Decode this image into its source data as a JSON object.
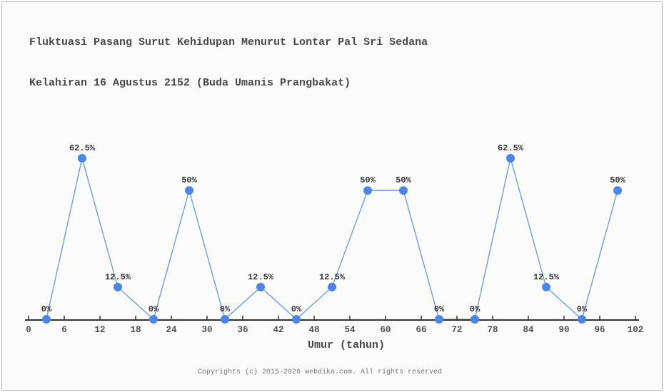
{
  "page": {
    "title_line1": "Fluktuasi Pasang Surut Kehidupan Menurut Lontar Pal Sri Sedana",
    "title_line2": "Kelahiran 16 Agustus 2152 (Buda Umanis Prangbakat)",
    "footer": "Copyrights (c) 2015-2026 webdika.com. All rights reserved"
  },
  "chart_data": {
    "type": "line",
    "title": "Fluktuasi Pasang Surut Kehidupan Menurut Lontar Pal Sri Sedana Kelahiran 16 Agustus 2152 (Buda Umanis Prangbakat)",
    "xlabel": "Umur (tahun)",
    "ylabel": "",
    "x": [
      3,
      9,
      15,
      21,
      27,
      33,
      39,
      45,
      51,
      57,
      63,
      69,
      75,
      81,
      87,
      93,
      99
    ],
    "values": [
      0,
      62.5,
      12.5,
      0,
      50,
      0,
      12.5,
      0,
      12.5,
      50,
      50,
      0,
      0,
      62.5,
      12.5,
      0,
      50
    ],
    "point_labels": [
      "0%",
      "62.5%",
      "12.5%",
      "0%",
      "50%",
      "0%",
      "12.5%",
      "0%",
      "12.5%",
      "50%",
      "50%",
      "0%",
      "0%",
      "62.5%",
      "12.5%",
      "0%",
      "50%"
    ],
    "x_ticks": [
      0,
      6,
      12,
      18,
      24,
      30,
      36,
      42,
      48,
      54,
      60,
      66,
      72,
      78,
      84,
      90,
      96,
      102
    ],
    "xlim": [
      0,
      102
    ],
    "ylim": [
      0,
      100
    ],
    "grid": false,
    "legend": "none",
    "colors": {
      "marker": "#4a86e8",
      "line": "#6397e8",
      "axis": "#333333",
      "point_label": "#333333",
      "tick_label": "#4d4d4d",
      "title": "#4a4a4a",
      "footer": "#777777",
      "background": "#fbfbfb",
      "border": "#b2b2b2"
    }
  }
}
